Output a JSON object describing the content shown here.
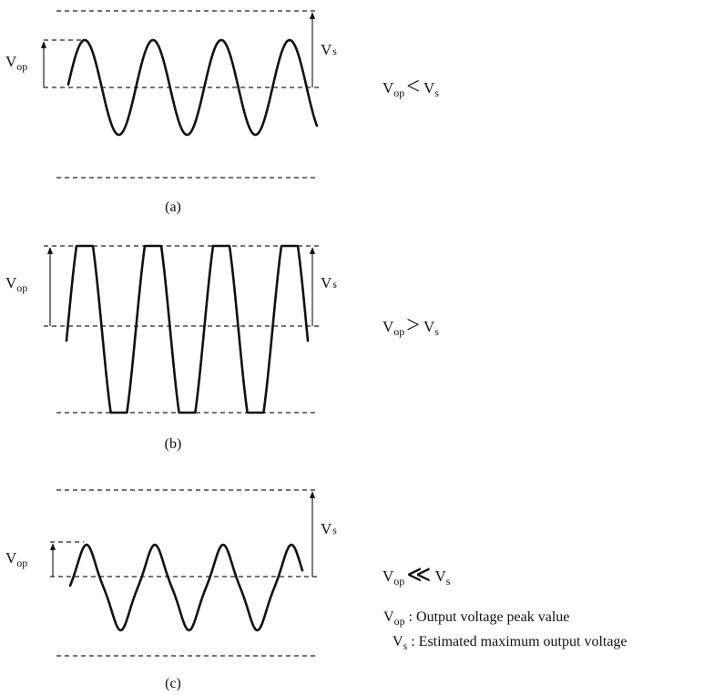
{
  "panels": [
    {
      "caption": "(a)",
      "vop_label": {
        "main": "V",
        "sub": "op"
      },
      "vs_label": {
        "main": "V",
        "sub": "s"
      },
      "relation": {
        "left_main": "V",
        "left_sub": "op",
        "symbol": "<",
        "right_main": "V",
        "right_sub": "s"
      }
    },
    {
      "caption": "(b)",
      "vop_label": {
        "main": "V",
        "sub": "op"
      },
      "vs_label": {
        "main": "V",
        "sub": "s"
      },
      "relation": {
        "left_main": "V",
        "left_sub": "op",
        "symbol": ">",
        "right_main": "V",
        "right_sub": "s"
      }
    },
    {
      "caption": "(c)",
      "vop_label": {
        "main": "V",
        "sub": "op"
      },
      "vs_label": {
        "main": "V",
        "sub": "s"
      },
      "relation": {
        "left_main": "V",
        "left_sub": "op",
        "symbol": "≪",
        "right_main": "V",
        "right_sub": "s"
      }
    }
  ],
  "legend": [
    {
      "main": "V",
      "sub": "op",
      "text": " : Output voltage peak value"
    },
    {
      "main": "V",
      "sub": "s",
      "text": " : Estimated maximum output voltage"
    }
  ]
}
